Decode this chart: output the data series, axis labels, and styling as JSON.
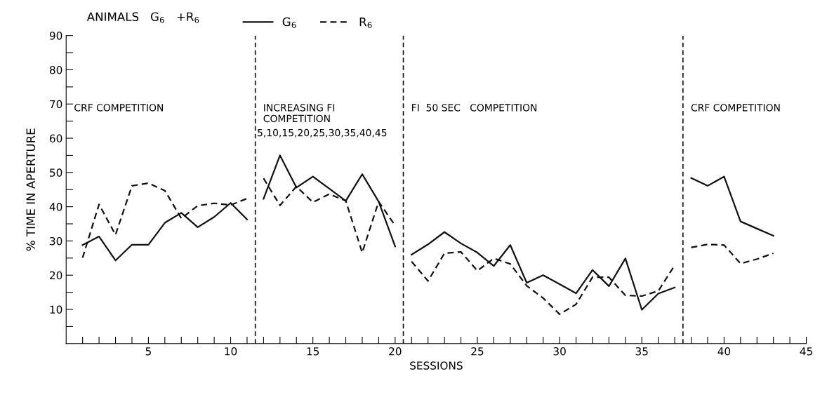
{
  "chart_data": {
    "type": "line",
    "xlabel": "SESSIONS",
    "ylabel": "% TIME IN APERTURE",
    "legend_title": "ANIMALS   G$_{6}$   +R$_{6}$",
    "legend": "top left",
    "grid": false,
    "marker": "none",
    "x": [
      1,
      2,
      3,
      4,
      5,
      6,
      7,
      8,
      9,
      10,
      11,
      11.5,
      12,
      13,
      14,
      15,
      16,
      17,
      18,
      19,
      20,
      20.5,
      21,
      22,
      23,
      24,
      25,
      26,
      27,
      28,
      29,
      30,
      31,
      32,
      33,
      34,
      35,
      36,
      37,
      37.5,
      38,
      39,
      40,
      41,
      42,
      43
    ],
    "series": [
      {
        "name": "G$_{6}$",
        "color": "#111111",
        "line_style": "solid",
        "values": [
          28.8,
          31.3,
          24.3,
          28.9,
          28.9,
          35.3,
          38.2,
          34,
          37,
          41.1,
          36.3,
          null,
          42.3,
          55,
          45.6,
          48.8,
          45.3,
          41.7,
          49.5,
          41.5,
          28.4,
          null,
          26,
          29,
          32.6,
          29.3,
          26.6,
          22.7,
          28.8,
          17.8,
          20,
          17.4,
          14.7,
          21.5,
          16.8,
          24.9,
          9.9,
          14.6,
          16.4,
          null,
          48.4,
          46.1,
          48.8,
          35.7,
          33.6,
          31.5
        ]
      },
      {
        "name": "R$_{6}$",
        "color": "#111111",
        "line_style": "dashed",
        "values": [
          25.1,
          40.7,
          31.8,
          46.1,
          46.9,
          44.7,
          36.6,
          40.3,
          41,
          40.5,
          42.4,
          null,
          48.3,
          40.4,
          45.9,
          41.3,
          43.7,
          41.7,
          26.6,
          41.5,
          34.5,
          null,
          24,
          18.3,
          26.4,
          26.8,
          21.3,
          24.9,
          23.3,
          16.9,
          13.3,
          8.6,
          11.5,
          19.4,
          19.4,
          14.1,
          13.9,
          15.4,
          22.9,
          null,
          28.1,
          29,
          28.8,
          23.4,
          24.7,
          26.4
        ]
      }
    ],
    "xlim": [
      0,
      45
    ],
    "xticks": [
      {
        "value": 1,
        "label": null
      },
      {
        "value": 2,
        "label": null
      },
      {
        "value": 3,
        "label": null
      },
      {
        "value": 4,
        "label": null
      },
      5,
      {
        "value": 6,
        "label": null
      },
      {
        "value": 7,
        "label": null
      },
      {
        "value": 8,
        "label": null
      },
      {
        "value": 9,
        "label": null
      },
      10,
      {
        "value": 11,
        "label": null
      },
      {
        "value": 12,
        "label": null
      },
      {
        "value": 13,
        "label": null
      },
      {
        "value": 14,
        "label": null
      },
      15,
      {
        "value": 16,
        "label": null
      },
      {
        "value": 17,
        "label": null
      },
      {
        "value": 18,
        "label": null
      },
      {
        "value": 19,
        "label": null
      },
      20,
      {
        "value": 21,
        "label": null
      },
      {
        "value": 22,
        "label": null
      },
      {
        "value": 23,
        "label": null
      },
      {
        "value": 24,
        "label": null
      },
      25,
      {
        "value": 26,
        "label": null
      },
      {
        "value": 27,
        "label": null
      },
      {
        "value": 28,
        "label": null
      },
      {
        "value": 29,
        "label": null
      },
      30,
      {
        "value": 31,
        "label": null
      },
      {
        "value": 32,
        "label": null
      },
      {
        "value": 33,
        "label": null
      },
      {
        "value": 34,
        "label": null
      },
      35,
      {
        "value": 36,
        "label": null
      },
      {
        "value": 37,
        "label": null
      },
      {
        "value": 38,
        "label": null
      },
      {
        "value": 39,
        "label": null
      },
      40,
      {
        "value": 41,
        "label": null
      },
      {
        "value": 42,
        "label": null
      },
      {
        "value": 43,
        "label": null
      },
      {
        "value": 44,
        "label": null
      },
      45
    ],
    "ylim": [
      0,
      90
    ],
    "yticks": [
      {
        "value": 5,
        "label": null
      },
      10,
      {
        "value": 15,
        "label": null
      },
      20,
      {
        "value": 25,
        "label": null
      },
      30,
      {
        "value": 35,
        "label": null
      },
      40,
      {
        "value": 45,
        "label": null
      },
      50,
      {
        "value": 55,
        "label": null
      },
      60,
      {
        "value": 65,
        "label": null
      },
      70,
      {
        "value": 75,
        "label": null
      },
      80,
      {
        "value": 85,
        "label": null
      },
      90
    ],
    "ref_lines": [
      {
        "axis": "x",
        "value": 11.5,
        "line_style": "dashed",
        "color": "#111111"
      },
      {
        "axis": "x",
        "value": 20.5,
        "line_style": "dashed",
        "color": "#111111"
      },
      {
        "axis": "x",
        "value": 37.5,
        "line_style": "dashed",
        "color": "#111111"
      }
    ],
    "annotations": [
      "CRF COMPETITION",
      "INCREASING FI\nCOMPETITION",
      {
        "text": "5,10,15,20,25,30,35,40,45",
        "x": 11.6,
        "y": 60
      },
      "FI  50 SEC   COMPETITION",
      "CRF COMPETITION"
    ]
  }
}
